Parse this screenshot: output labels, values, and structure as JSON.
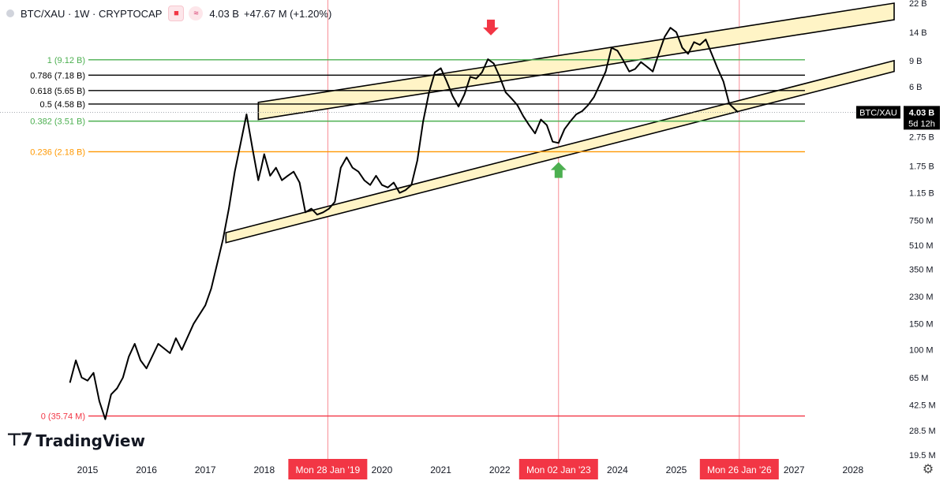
{
  "header": {
    "symbol_title": "BTC/XAU · 1W · CRYPTOCAP",
    "value": "4.03 B",
    "change": "+47.67 M (+1.20%)",
    "indicator_glyph": "≈"
  },
  "brand": {
    "name": "TradingView"
  },
  "colors": {
    "line": "#000000",
    "green": "#4caf50",
    "orange": "#ff9800",
    "red": "#f23645",
    "channel_fill": "#fff4c6",
    "label_bg": "#f23645"
  },
  "chart_data": {
    "type": "line",
    "scale": "log",
    "xlabel": "",
    "ylabel": "",
    "x_ticks": [
      "2015",
      "2016",
      "2017",
      "2018",
      "2019",
      "2020",
      "2021",
      "2022",
      "2023",
      "2024",
      "2025",
      "2026",
      "2027",
      "2028"
    ],
    "date_labels": [
      "Mon 28 Jan '19",
      "Mon 02 Jan '23",
      "Mon 26 Jan '26"
    ],
    "y_ticks": [
      "22 B",
      "14 B",
      "9 B",
      "6 B",
      "2.75 B",
      "1.75 B",
      "1.15 B",
      "750 M",
      "510 M",
      "350 M",
      "230 M",
      "150 M",
      "100 M",
      "65 M",
      "42.5 M",
      "28.5 M",
      "19.5 M"
    ],
    "y_tick_values": [
      22000,
      14000,
      9000,
      6000,
      2750,
      1750,
      1150,
      750,
      510,
      350,
      230,
      150,
      100,
      65,
      42.5,
      28.5,
      19.5
    ],
    "ylim": [
      19.5,
      22000
    ],
    "last_price": {
      "label": "BTC/XAU",
      "value": "4.03 B",
      "countdown": "5d 12h"
    },
    "fib_levels": [
      {
        "ratio": "1",
        "text": "1 (9.12 B)",
        "value": 9120,
        "color": "green"
      },
      {
        "ratio": "0.786",
        "text": "0.786 (7.18 B)",
        "value": 7180,
        "color": "black"
      },
      {
        "ratio": "0.618",
        "text": "0.618 (5.65 B)",
        "value": 5650,
        "color": "black"
      },
      {
        "ratio": "0.5",
        "text": "0.5 (4.58 B)",
        "value": 4580,
        "color": "black"
      },
      {
        "ratio": "0.382",
        "text": "0.382 (3.51 B)",
        "value": 3510,
        "color": "green"
      },
      {
        "ratio": "0.236",
        "text": "0.236 (2.18 B)",
        "value": 2180,
        "color": "orange"
      },
      {
        "ratio": "0",
        "text": "0 (35.74 M)",
        "value": 35.74,
        "color": "red"
      }
    ],
    "series": [
      {
        "x": [
          2014.7,
          2014.8,
          2014.9,
          2015.0,
          2015.1,
          2015.2,
          2015.3,
          2015.4,
          2015.5,
          2015.6,
          2015.7,
          2015.8,
          2015.9,
          2016.0,
          2016.2,
          2016.4,
          2016.5,
          2016.6,
          2016.8,
          2017.0,
          2017.1,
          2017.2,
          2017.3,
          2017.4,
          2017.5,
          2017.6,
          2017.7,
          2017.8,
          2017.9,
          2017.95,
          2018.0,
          2018.1,
          2018.2,
          2018.3,
          2018.4,
          2018.5,
          2018.6,
          2018.7,
          2018.8,
          2018.9,
          2019.0,
          2019.1,
          2019.2,
          2019.3,
          2019.4,
          2019.5,
          2019.6,
          2019.7,
          2019.8,
          2019.9,
          2020.0,
          2020.1,
          2020.2,
          2020.3,
          2020.4,
          2020.5,
          2020.6,
          2020.7,
          2020.8,
          2020.9,
          2021.0,
          2021.1,
          2021.2,
          2021.3,
          2021.4,
          2021.5,
          2021.6,
          2021.7,
          2021.8,
          2021.9,
          2022.0,
          2022.1,
          2022.2,
          2022.3,
          2022.4,
          2022.5,
          2022.6,
          2022.7,
          2022.8,
          2022.9,
          2023.0,
          2023.1,
          2023.2,
          2023.3,
          2023.4,
          2023.5,
          2023.6,
          2023.7,
          2023.8,
          2023.9,
          2024.0,
          2024.1,
          2024.2,
          2024.3,
          2024.4,
          2024.5,
          2024.6,
          2024.7,
          2024.8,
          2024.9,
          2025.0,
          2025.1,
          2025.2,
          2025.3,
          2025.4,
          2025.5,
          2025.6,
          2025.7,
          2025.8,
          2025.9,
          2026.0,
          2026.05
        ],
        "values": [
          60,
          85,
          65,
          62,
          70,
          45,
          34,
          50,
          55,
          65,
          90,
          110,
          85,
          75,
          110,
          95,
          120,
          100,
          150,
          200,
          260,
          380,
          560,
          900,
          1600,
          2500,
          3900,
          2300,
          1400,
          1700,
          2100,
          1500,
          1700,
          1400,
          1500,
          1600,
          1350,
          850,
          900,
          820,
          850,
          900,
          1000,
          1700,
          2000,
          1700,
          1600,
          1400,
          1300,
          1500,
          1300,
          1250,
          1350,
          1150,
          1200,
          1300,
          1900,
          3500,
          5500,
          7500,
          8000,
          6500,
          5200,
          4400,
          5300,
          7000,
          6800,
          7500,
          9200,
          8600,
          7000,
          5500,
          5000,
          4500,
          3800,
          3300,
          2900,
          3600,
          3300,
          2550,
          2500,
          3100,
          3500,
          3900,
          4100,
          4500,
          5100,
          6200,
          7600,
          11000,
          10500,
          9000,
          7600,
          7900,
          8800,
          8200,
          7600,
          10000,
          13000,
          15000,
          14000,
          11000,
          10000,
          12000,
          11500,
          12500,
          10000,
          8000,
          6500,
          4600,
          4200,
          4030
        ]
      }
    ],
    "channel": {
      "upper_band": {
        "x": [
          2017.9,
          2028.7
        ],
        "top": [
          4700,
          22000
        ],
        "bottom": [
          3600,
          17000
        ]
      },
      "lower_band": {
        "x": [
          2017.35,
          2028.7
        ],
        "top": [
          620,
          9000
        ],
        "bottom": [
          530,
          7600
        ]
      }
    },
    "annotations": [
      {
        "type": "arrow-down",
        "x": 2021.85,
        "value": 13000,
        "color": "red"
      },
      {
        "type": "arrow-up",
        "x": 2023.0,
        "value": 1900,
        "color": "green"
      }
    ],
    "vlines_x": [
      2019.08,
      2023.0,
      2026.07
    ],
    "grid": false
  }
}
